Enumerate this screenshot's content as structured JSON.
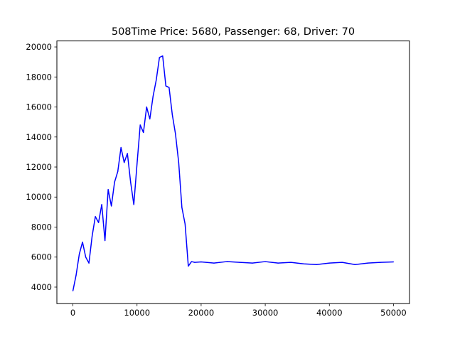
{
  "chart_data": {
    "type": "line",
    "title": "508Time Price: 5680, Passenger: 68, Driver: 70",
    "xlabel": "",
    "ylabel": "",
    "xlim": [
      -2500,
      52500
    ],
    "ylim": [
      2900,
      20400
    ],
    "xticks": [
      0,
      10000,
      20000,
      30000,
      40000,
      50000
    ],
    "xtick_labels": [
      "0",
      "10000",
      "20000",
      "30000",
      "40000",
      "50000"
    ],
    "yticks": [
      4000,
      6000,
      8000,
      10000,
      12000,
      14000,
      16000,
      18000,
      20000
    ],
    "ytick_labels": [
      "4000",
      "6000",
      "8000",
      "10000",
      "12000",
      "14000",
      "16000",
      "18000",
      "20000"
    ],
    "grid": false,
    "series": [
      {
        "color": "#0000ff",
        "x": [
          0,
          500,
          1000,
          1500,
          2000,
          2500,
          3000,
          3500,
          4000,
          4500,
          5000,
          5500,
          6000,
          6500,
          7000,
          7500,
          8000,
          8500,
          9000,
          9500,
          10000,
          10500,
          11000,
          11500,
          12000,
          12500,
          13000,
          13500,
          14000,
          14500,
          15000,
          15500,
          16000,
          16500,
          17000,
          17500,
          18000,
          18500,
          19000,
          20000,
          22000,
          24000,
          26000,
          28000,
          30000,
          32000,
          34000,
          36000,
          38000,
          40000,
          42000,
          44000,
          46000,
          48000,
          50000
        ],
        "y": [
          3750,
          4800,
          6200,
          7000,
          6000,
          5600,
          7400,
          8700,
          8300,
          9500,
          7100,
          10500,
          9400,
          11000,
          11700,
          13300,
          12300,
          12900,
          11000,
          9500,
          12200,
          14800,
          14300,
          16000,
          15200,
          16700,
          17800,
          19300,
          19400,
          17400,
          17300,
          15500,
          14200,
          12300,
          9300,
          8200,
          5400,
          5700,
          5650,
          5680,
          5600,
          5700,
          5650,
          5600,
          5700,
          5600,
          5650,
          5550,
          5500,
          5600,
          5650,
          5500,
          5600,
          5650,
          5680
        ]
      }
    ]
  }
}
